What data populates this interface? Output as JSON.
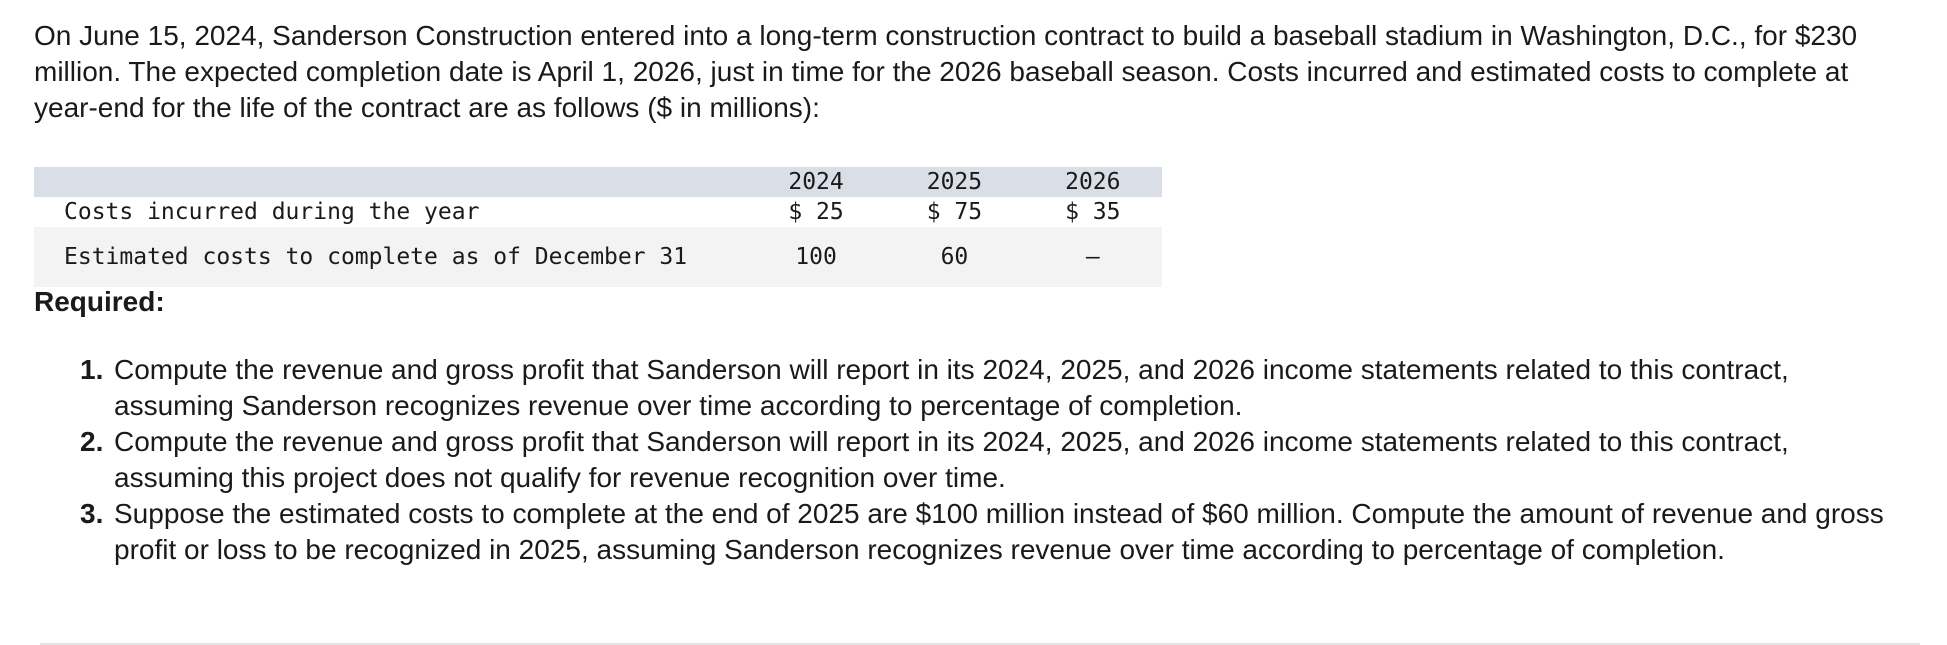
{
  "intro_text": "On June 15, 2024, Sanderson Construction entered into a long-term construction contract to build a baseball stadium in Washington, D.C., for $230 million. The expected completion date is April 1, 2026, just in time for the 2026 baseball season. Costs incurred and estimated costs to complete at year-end for the life of the contract are as follows ($ in millions):",
  "table": {
    "columns": [
      "2024",
      "2025",
      "2026"
    ],
    "rows": [
      {
        "label": "Costs incurred during the year",
        "values": [
          "$ 25",
          "$ 75",
          "$ 35"
        ]
      },
      {
        "label": "Estimated costs to complete as of December 31",
        "values": [
          "100",
          "60",
          "—"
        ]
      }
    ]
  },
  "required_heading": "Required:",
  "requirements": [
    {
      "num": "1.",
      "text": "Compute the revenue and gross profit that Sanderson will report in its 2024, 2025, and 2026 income statements related to this contract, assuming Sanderson recognizes revenue over time according to percentage of completion."
    },
    {
      "num": "2.",
      "text": "Compute the revenue and gross profit that Sanderson will report in its 2024, 2025, and 2026 income statements related to this contract, assuming this project does not qualify for revenue recognition over time."
    },
    {
      "num": "3.",
      "text": "Suppose the estimated costs to complete at the end of 2025 are $100 million instead of $60 million. Compute the amount of revenue and gross profit or loss to be recognized in 2025, assuming Sanderson recognizes revenue over time according to percentage of completion."
    }
  ]
}
